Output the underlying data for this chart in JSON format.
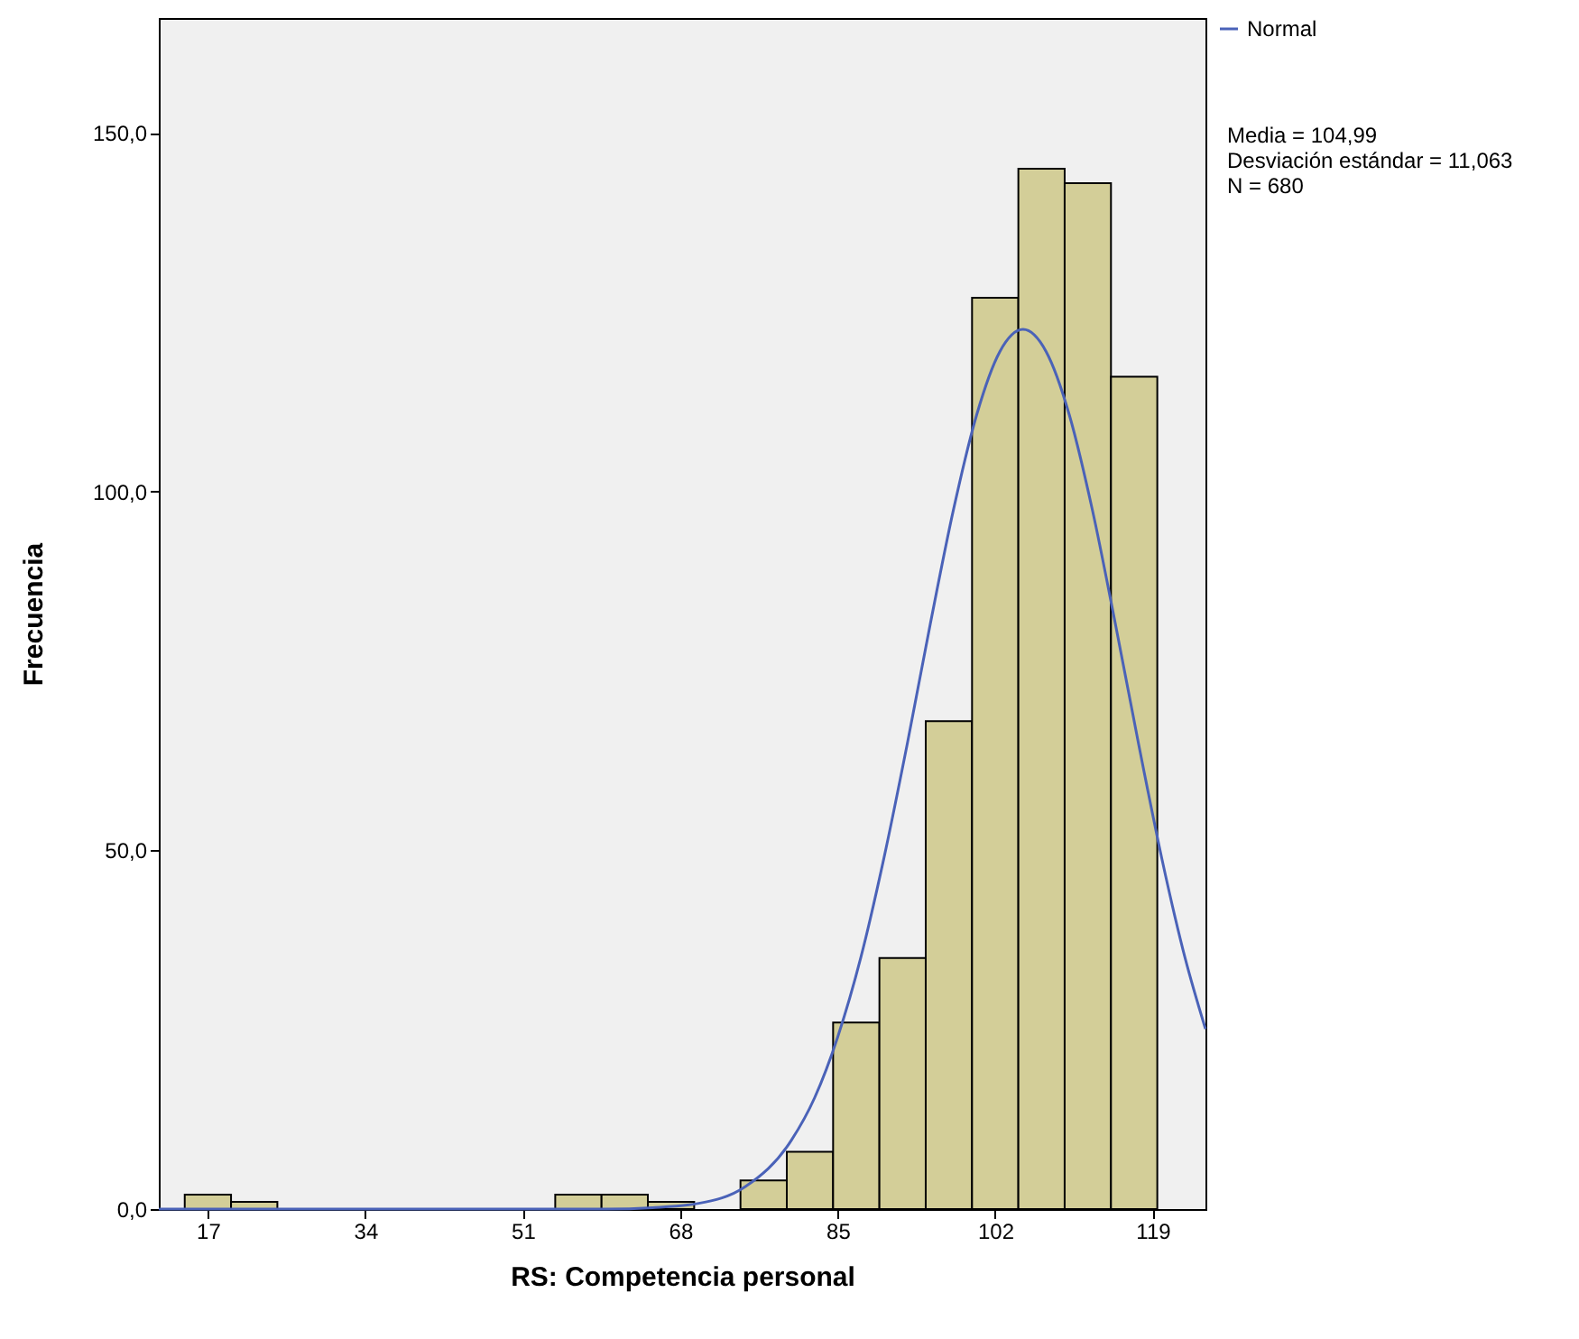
{
  "chart_data": {
    "type": "histogram",
    "xlabel": "RS: Competencia personal",
    "ylabel": "Frecuencia",
    "bins": [
      14.5,
      19.5,
      24.5,
      29.5,
      34.5,
      39.5,
      44.5,
      49.5,
      54.5,
      59.5,
      64.5,
      69.5,
      74.5,
      79.5,
      84.5,
      89.5,
      94.5,
      99.5,
      104.5,
      109.5,
      114.5,
      119.5
    ],
    "values": [
      2,
      1,
      0,
      0,
      0,
      0,
      0,
      0,
      2,
      2,
      1,
      0,
      4,
      8,
      26,
      35,
      68,
      127,
      145,
      143,
      116
    ],
    "color": "#d3ce98",
    "series": [
      {
        "name": "Normal",
        "type": "line",
        "color": "#4a62b8",
        "x": [
          11.7,
          40,
          55,
          60,
          65,
          70,
          75,
          80,
          82.5,
          85,
          87.5,
          90,
          92.5,
          95,
          97.5,
          100,
          102.5,
          105,
          107.5,
          110,
          112.5,
          115,
          117.5,
          120,
          122.5,
          124.7
        ],
        "values": [
          0,
          0,
          0,
          0,
          0.2,
          0.8,
          3.1,
          9.6,
          15.5,
          24.0,
          35.1,
          49.0,
          64.8,
          81.6,
          97.5,
          110.7,
          119.5,
          122.6,
          119.5,
          110.7,
          97.4,
          81.4,
          64.7,
          48.8,
          35.0,
          25.1
        ]
      }
    ],
    "xlim": [
      11.7,
      124.7
    ],
    "xticks": [
      17,
      34,
      51,
      68,
      85,
      102,
      119
    ],
    "ylim": [
      0,
      166
    ],
    "yticks": [
      {
        "value": 0,
        "label": "0,0"
      },
      {
        "value": 50,
        "label": "50,0"
      },
      {
        "value": 100,
        "label": "100,0"
      },
      {
        "value": 150,
        "label": "150,0"
      }
    ],
    "grid": false,
    "legend": "top right",
    "annotations": [
      "Media = 104,99",
      "Desviación estándar = 11,063",
      "N = 680"
    ]
  }
}
